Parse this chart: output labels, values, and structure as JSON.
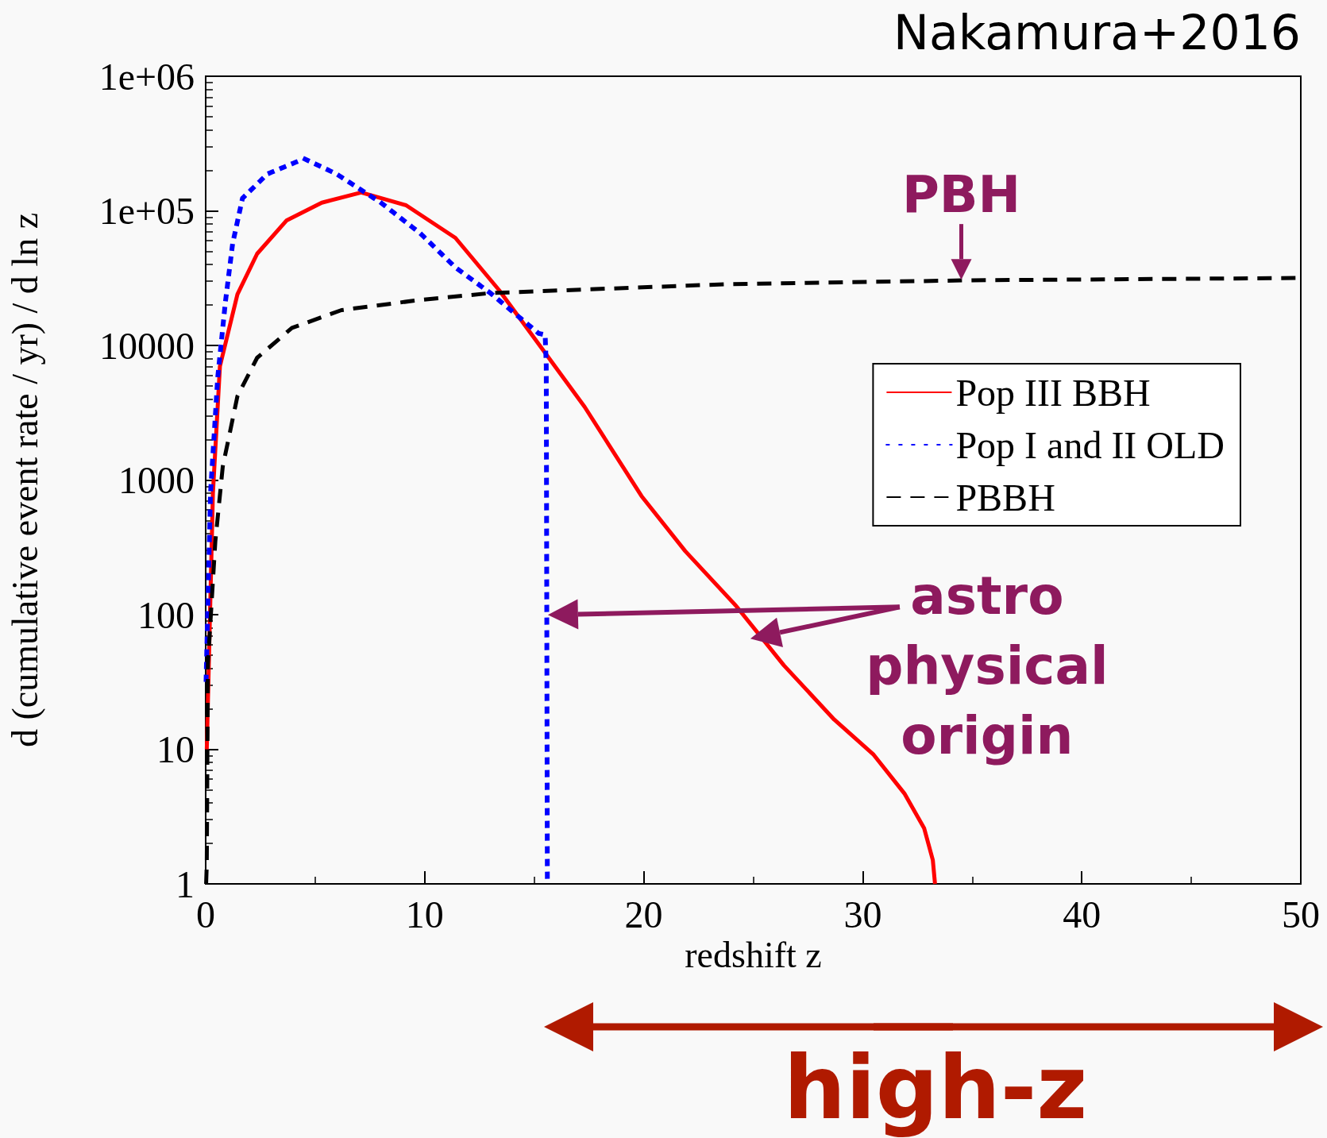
{
  "chart_data": {
    "type": "line",
    "xlabel": "redshift z",
    "ylabel": "d (cumulative event rate / yr) / d ln z",
    "log": "y",
    "xlim": [
      0,
      50
    ],
    "xticks": [
      0,
      10,
      20,
      30,
      40,
      50
    ],
    "ylim": [
      1,
      1000000
    ],
    "yticks": [
      1,
      10,
      100,
      1000,
      10000,
      {
        "value": 100000,
        "label": "1e+05"
      },
      {
        "value": 1000000,
        "label": "1e+06"
      }
    ],
    "grid": false,
    "legend": "right",
    "marker": "none",
    "series": [
      {
        "name": "Pop III BBH",
        "color": "#ff0000",
        "line_style": "solid",
        "x": [
          0.05,
          0.33,
          0.65,
          1.45,
          2.35,
          3.7,
          5.3,
          7.1,
          9.15,
          11.4,
          13.4,
          15.35,
          17.3,
          19.9,
          21.9,
          24.2,
          26.4,
          28.7,
          30.5,
          31.9,
          32.8,
          33.2,
          33.3
        ],
        "values": [
          10,
          800,
          7000,
          24000,
          48000,
          85000,
          115000,
          137000,
          110000,
          63000,
          25700,
          9500,
          3500,
          760,
          296,
          117,
          42,
          16.6,
          9.1,
          4.7,
          2.6,
          1.5,
          1
        ]
      },
      {
        "name": "Pop I and II OLD",
        "color": "#0000ff",
        "line_style": "dotted",
        "x": [
          0.02,
          0.22,
          0.55,
          0.9,
          1.23,
          1.68,
          2.82,
          4.5,
          5.97,
          8.0,
          9.8,
          11.4,
          13.0,
          15.2,
          15.5,
          15.55,
          15.6
        ],
        "values": [
          33,
          800,
          5800,
          21000,
          57000,
          124000,
          188000,
          244000,
          188000,
          115000,
          68000,
          38000,
          24500,
          12300,
          12000,
          7000,
          1
        ]
      },
      {
        "name": "PBBH",
        "color": "#000000",
        "line_style": "dashed",
        "x": [
          0.02,
          0.05,
          0.1,
          0.44,
          0.78,
          1.45,
          2.35,
          3.94,
          6.2,
          9.6,
          13,
          23.7,
          35,
          50
        ],
        "values": [
          1,
          1.4,
          43,
          350,
          1260,
          4200,
          8100,
          13500,
          18300,
          21600,
          24500,
          28500,
          30500,
          31700
        ]
      }
    ],
    "annotations": [
      "Nakamura+2016",
      {
        "text": "PBH",
        "x": 34.5,
        "y": 30000
      },
      "astro physical origin",
      "high-z"
    ]
  }
}
